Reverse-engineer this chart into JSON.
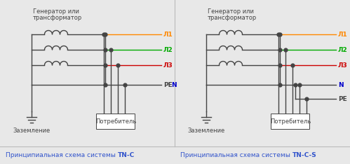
{
  "bg_color": "#e8e8e8",
  "panel_bg": "#e8e8e8",
  "line_color": "#444444",
  "line_width": 1.0,
  "dot_size": 3.5,
  "title_left_normal": "Принципиальная схема системы ",
  "title_left_bold": "TN-C",
  "title_right_normal": "Принципиальная схема системы ",
  "title_right_bold": "TN-C-S",
  "gen_label": "Генератор или\nтрансформатор",
  "earth_label": "Заземление",
  "consumer_label": "Потребитель",
  "L1_color": "#ff8800",
  "L2_color": "#00aa00",
  "L3_color": "#cc0000",
  "N_color": "#0000cc",
  "PE_color": "#444444",
  "title_color": "#444444",
  "title_blue": "#3355cc"
}
